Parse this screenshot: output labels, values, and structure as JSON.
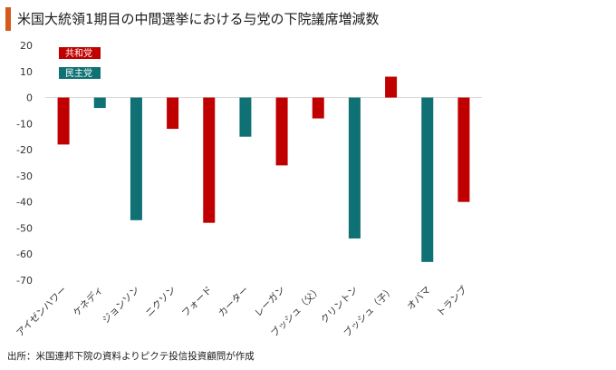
{
  "header": {
    "title": "米国大統領1期目の中間選挙における与党の下院議席増減数"
  },
  "footer": {
    "source": "出所：米国連邦下院の資料よりピクテ投信投資顧問が作成"
  },
  "colors": {
    "republican": "#c00000",
    "democrat": "#0f7173",
    "accent": "#d35a1c"
  },
  "chart_data": {
    "type": "bar",
    "ylim": [
      -70,
      20
    ],
    "yticks": [
      20,
      10,
      0,
      -10,
      -20,
      -30,
      -40,
      -50,
      -60,
      -70
    ],
    "grid": false,
    "legend_position": "top-left",
    "legend": [
      {
        "name": "共和党",
        "party": "republican"
      },
      {
        "name": "民主党",
        "party": "democrat"
      }
    ],
    "categories": [
      "アイゼンハワー",
      "ケネディ",
      "ジョンソン",
      "ニクソン",
      "フォード",
      "カーター",
      "レーガン",
      "ブッシュ（父）",
      "クリントン",
      "ブッシュ（子）",
      "オバマ",
      "トランプ"
    ],
    "values": [
      -18,
      -4,
      -47,
      -12,
      -48,
      -15,
      -26,
      -8,
      -54,
      8,
      -63,
      -40
    ],
    "parties": [
      "republican",
      "democrat",
      "democrat",
      "republican",
      "republican",
      "democrat",
      "republican",
      "republican",
      "democrat",
      "republican",
      "democrat",
      "republican"
    ]
  }
}
